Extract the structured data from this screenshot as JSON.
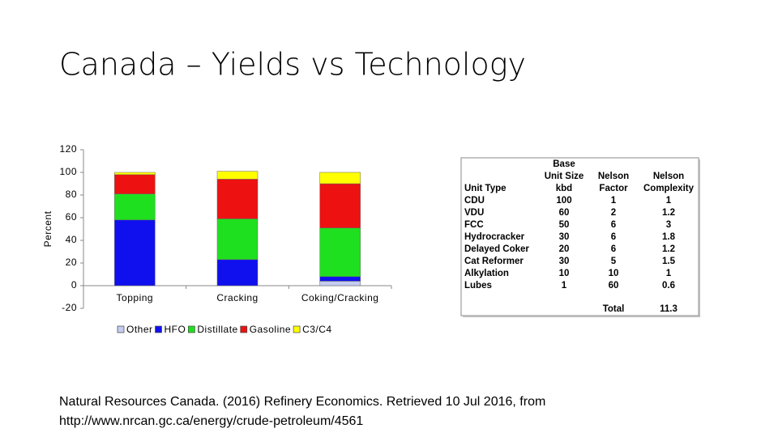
{
  "title": "Canada – Yields vs Technology",
  "chart_data": {
    "type": "stacked_bar",
    "y_label": "Percent",
    "categories": [
      "Topping",
      "Cracking",
      "Coking/Cracking"
    ],
    "series": [
      {
        "name": "Other",
        "color": "#c4ccf0",
        "values": [
          0,
          0,
          4
        ]
      },
      {
        "name": "HFO",
        "color": "#1010ee",
        "values": [
          58,
          23,
          4
        ]
      },
      {
        "name": "Distillate",
        "color": "#1fe01f",
        "values": [
          23,
          36,
          43
        ]
      },
      {
        "name": "Gasoline",
        "color": "#ee1111",
        "values": [
          17,
          35,
          39
        ]
      },
      {
        "name": "C3/C4",
        "color": "#ffff00",
        "values": [
          2,
          7,
          10
        ]
      }
    ],
    "ylim": [
      -20,
      120
    ],
    "yticks": [
      -20,
      0,
      20,
      40,
      60,
      80,
      100,
      120
    ],
    "grid": false,
    "legend": "bottom"
  },
  "table": {
    "columns": [
      [
        "Unit Type"
      ],
      [
        "Base",
        "Unit Size",
        "kbd"
      ],
      [
        "Nelson",
        "Factor"
      ],
      [
        "Nelson",
        "Complexity"
      ]
    ],
    "rows": [
      [
        "CDU",
        "100",
        "1",
        "1"
      ],
      [
        "VDU",
        "60",
        "2",
        "1.2"
      ],
      [
        "FCC",
        "50",
        "6",
        "3"
      ],
      [
        "Hydrocracker",
        "30",
        "6",
        "1.8"
      ],
      [
        "Delayed Coker",
        "20",
        "6",
        "1.2"
      ],
      [
        "Cat Reformer",
        "30",
        "5",
        "1.5"
      ],
      [
        "Alkylation",
        "10",
        "10",
        "1"
      ],
      [
        "Lubes",
        "1",
        "60",
        "0.6"
      ]
    ],
    "total": {
      "label": "Total",
      "value": "11.3"
    }
  },
  "citation": [
    "Natural Resources Canada. (2016) Refinery Economics. Retrieved 10  Jul 2016, from",
    "http://www.nrcan.gc.ca/energy/crude-petroleum/4561"
  ]
}
